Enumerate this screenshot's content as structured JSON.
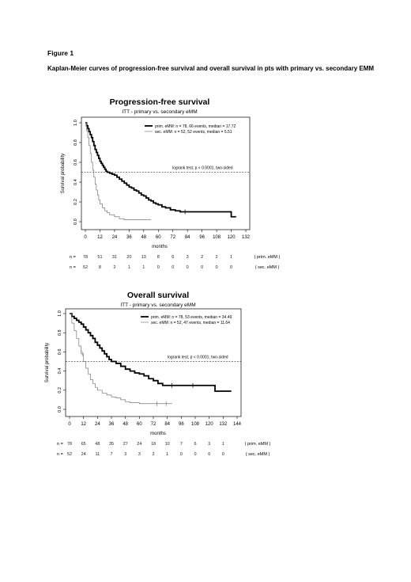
{
  "figure": {
    "label": "Figure 1",
    "caption": "Kaplan-Meier curves of progression-free survival and overall survival in pts with primary  vs. secondary EMM"
  },
  "chart_data": [
    {
      "type": "line",
      "title": "Progression-free survival",
      "subtitle": "ITT - primary vs. secondary eMM",
      "xlabel": "months",
      "ylabel": "Survival probability",
      "xlim": [
        0,
        132
      ],
      "ylim": [
        0,
        1
      ],
      "x_ticks": [
        0,
        12,
        24,
        36,
        48,
        60,
        72,
        84,
        96,
        108,
        120,
        132
      ],
      "y_ticks": [
        0.0,
        0.2,
        0.4,
        0.6,
        0.8,
        1.0
      ],
      "reference_line": 0.5,
      "annotation": "logrank test, p < 0.0001, two-sided",
      "legend": [
        "prim. eMM: n = 78, 66 events, median = 17.72",
        "sec. eMM: n = 52, 52 events, median = 5.51"
      ],
      "series": [
        {
          "color": "#000000",
          "style": "thick",
          "points": [
            [
              0,
              1.0
            ],
            [
              1,
              0.97
            ],
            [
              2,
              0.94
            ],
            [
              3,
              0.91
            ],
            [
              4,
              0.88
            ],
            [
              5,
              0.85
            ],
            [
              6,
              0.81
            ],
            [
              7,
              0.77
            ],
            [
              8,
              0.73
            ],
            [
              9,
              0.7
            ],
            [
              10,
              0.67
            ],
            [
              11,
              0.64
            ],
            [
              12,
              0.61
            ],
            [
              13,
              0.59
            ],
            [
              14,
              0.57
            ],
            [
              15,
              0.55
            ],
            [
              16,
              0.53
            ],
            [
              17,
              0.51
            ],
            [
              18,
              0.5
            ],
            [
              20,
              0.49
            ],
            [
              22,
              0.48
            ],
            [
              24,
              0.47
            ],
            [
              26,
              0.45
            ],
            [
              28,
              0.43
            ],
            [
              30,
              0.41
            ],
            [
              32,
              0.39
            ],
            [
              34,
              0.37
            ],
            [
              36,
              0.35
            ],
            [
              38,
              0.34
            ],
            [
              40,
              0.32
            ],
            [
              42,
              0.31
            ],
            [
              44,
              0.29
            ],
            [
              46,
              0.27
            ],
            [
              48,
              0.26
            ],
            [
              50,
              0.24
            ],
            [
              52,
              0.22
            ],
            [
              54,
              0.21
            ],
            [
              56,
              0.19
            ],
            [
              58,
              0.18
            ],
            [
              60,
              0.17
            ],
            [
              63,
              0.15
            ],
            [
              66,
              0.14
            ],
            [
              70,
              0.12
            ],
            [
              74,
              0.11
            ],
            [
              78,
              0.1
            ],
            [
              84,
              0.1
            ],
            [
              96,
              0.1
            ],
            [
              108,
              0.1
            ],
            [
              119,
              0.1
            ],
            [
              120,
              0.05
            ],
            [
              124,
              0.05
            ]
          ],
          "censor_marks": [
            [
              82,
              0.1
            ]
          ]
        },
        {
          "color": "#777777",
          "style": "thin",
          "points": [
            [
              0,
              1.0
            ],
            [
              1,
              0.92
            ],
            [
              2,
              0.85
            ],
            [
              3,
              0.77
            ],
            [
              4,
              0.69
            ],
            [
              5,
              0.6
            ],
            [
              6,
              0.52
            ],
            [
              7,
              0.45
            ],
            [
              8,
              0.38
            ],
            [
              9,
              0.32
            ],
            [
              10,
              0.27
            ],
            [
              11,
              0.22
            ],
            [
              12,
              0.18
            ],
            [
              14,
              0.14
            ],
            [
              16,
              0.11
            ],
            [
              18,
              0.09
            ],
            [
              20,
              0.07
            ],
            [
              24,
              0.05
            ],
            [
              28,
              0.03
            ],
            [
              32,
              0.02
            ],
            [
              36,
              0.02
            ],
            [
              54,
              0.02
            ]
          ],
          "censor_marks": []
        }
      ],
      "at_risk": {
        "label": "n =",
        "rows": [
          {
            "name": "( prim. eMM )",
            "values": [
              "78",
              "51",
              "31",
              "20",
              "13",
              "8",
              "6",
              "3",
              "2",
              "2",
              "1"
            ]
          },
          {
            "name": "( sec. eMM )",
            "values": [
              "52",
              "8",
              "2",
              "1",
              "1",
              "0",
              "0",
              "0",
              "0",
              "0",
              "0"
            ]
          }
        ]
      }
    },
    {
      "type": "line",
      "title": "Overall survival",
      "subtitle": "ITT - primary vs. secondary eMM",
      "xlabel": "months",
      "ylabel": "Survival probability",
      "xlim": [
        0,
        144
      ],
      "ylim": [
        0,
        1
      ],
      "x_ticks": [
        0,
        12,
        24,
        36,
        48,
        60,
        72,
        84,
        96,
        108,
        120,
        132,
        144
      ],
      "y_ticks": [
        0.0,
        0.2,
        0.4,
        0.6,
        0.8,
        1.0
      ],
      "reference_line": 0.5,
      "annotation": "logrank test, p < 0.0001, two-sided",
      "legend": [
        "prim. eMM: n = 78, 53 events, median = 34.49",
        "sec. eMM: n = 52, 47 events, median = 11.64"
      ],
      "series": [
        {
          "color": "#000000",
          "style": "thick",
          "points": [
            [
              0,
              1.0
            ],
            [
              2,
              0.97
            ],
            [
              4,
              0.95
            ],
            [
              6,
              0.93
            ],
            [
              8,
              0.91
            ],
            [
              10,
              0.89
            ],
            [
              12,
              0.86
            ],
            [
              14,
              0.83
            ],
            [
              16,
              0.8
            ],
            [
              18,
              0.77
            ],
            [
              20,
              0.74
            ],
            [
              22,
              0.7
            ],
            [
              24,
              0.67
            ],
            [
              26,
              0.64
            ],
            [
              28,
              0.61
            ],
            [
              30,
              0.58
            ],
            [
              32,
              0.55
            ],
            [
              34,
              0.52
            ],
            [
              36,
              0.5
            ],
            [
              40,
              0.48
            ],
            [
              44,
              0.45
            ],
            [
              48,
              0.42
            ],
            [
              52,
              0.4
            ],
            [
              56,
              0.38
            ],
            [
              60,
              0.37
            ],
            [
              64,
              0.35
            ],
            [
              68,
              0.32
            ],
            [
              72,
              0.3
            ],
            [
              76,
              0.27
            ],
            [
              80,
              0.25
            ],
            [
              96,
              0.25
            ],
            [
              112,
              0.25
            ],
            [
              124,
              0.25
            ],
            [
              125,
              0.19
            ],
            [
              139,
              0.19
            ]
          ],
          "censor_marks": [
            [
              88,
              0.25
            ],
            [
              106,
              0.25
            ]
          ]
        },
        {
          "color": "#777777",
          "style": "thin",
          "points": [
            [
              0,
              1.0
            ],
            [
              2,
              0.9
            ],
            [
              4,
              0.82
            ],
            [
              6,
              0.74
            ],
            [
              8,
              0.66
            ],
            [
              10,
              0.58
            ],
            [
              12,
              0.5
            ],
            [
              14,
              0.43
            ],
            [
              16,
              0.37
            ],
            [
              18,
              0.31
            ],
            [
              20,
              0.27
            ],
            [
              22,
              0.23
            ],
            [
              24,
              0.2
            ],
            [
              28,
              0.17
            ],
            [
              32,
              0.15
            ],
            [
              36,
              0.13
            ],
            [
              40,
              0.12
            ],
            [
              44,
              0.1
            ],
            [
              48,
              0.08
            ],
            [
              52,
              0.07
            ],
            [
              60,
              0.06
            ],
            [
              72,
              0.06
            ],
            [
              88,
              0.06
            ]
          ],
          "censor_marks": [
            [
              10,
              0.62
            ],
            [
              11,
              0.58
            ],
            [
              75,
              0.06
            ],
            [
              83,
              0.06
            ]
          ]
        }
      ],
      "at_risk": {
        "label": "n =",
        "rows": [
          {
            "name": "( prim. eMM )",
            "values": [
              "78",
              "65",
              "48",
              "35",
              "27",
              "24",
              "18",
              "10",
              "7",
              "6",
              "3",
              "1"
            ]
          },
          {
            "name": "( sec. eMM )",
            "values": [
              "52",
              "24",
              "11",
              "7",
              "3",
              "3",
              "2",
              "1",
              "0",
              "0",
              "0",
              "0"
            ]
          }
        ]
      }
    }
  ]
}
